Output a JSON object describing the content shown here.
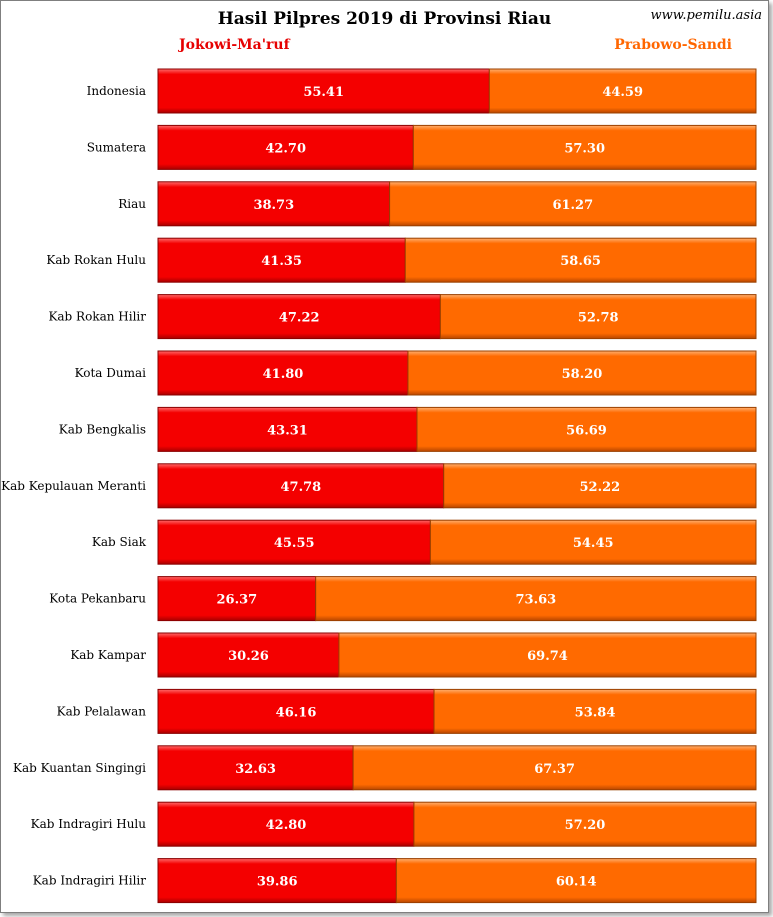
{
  "chart_data": {
    "type": "bar",
    "stacked": true,
    "orientation": "horizontal",
    "title": "Hasil Pilpres 2019 di Provinsi Riau",
    "source": "www.pemilu.asia",
    "legend_placement": "top",
    "categories": [
      "Indonesia",
      "Sumatera",
      "Riau",
      "Kab Rokan Hulu",
      "Kab Rokan Hilir",
      "Kota Dumai",
      "Kab Bengkalis",
      "Kab Kepulauan Meranti",
      "Kab Siak",
      "Kota Pekanbaru",
      "Kab Kampar",
      "Kab Pelalawan",
      "Kab Kuantan Singingi",
      "Kab Indragiri Hulu",
      "Kab Indragiri Hilir"
    ],
    "series": [
      {
        "name": "Jokowi-Ma'ruf",
        "color": "#ff0000",
        "label_color": "#e60000",
        "values": [
          "55.41",
          "42.70",
          "38.73",
          "41.35",
          "47.22",
          "41.80",
          "43.31",
          "47.78",
          "45.55",
          "26.37",
          "30.26",
          "46.16",
          "32.63",
          "42.80",
          "39.86"
        ]
      },
      {
        "name": "Prabowo-Sandi",
        "color": "#ff6600",
        "label_color": "#ff6600",
        "values": [
          "44.59",
          "57.30",
          "61.27",
          "58.65",
          "52.78",
          "58.20",
          "56.69",
          "52.22",
          "54.45",
          "73.63",
          "69.74",
          "53.84",
          "67.37",
          "57.20",
          "60.14"
        ]
      }
    ],
    "xlim": [
      0,
      100
    ],
    "grid": false
  }
}
